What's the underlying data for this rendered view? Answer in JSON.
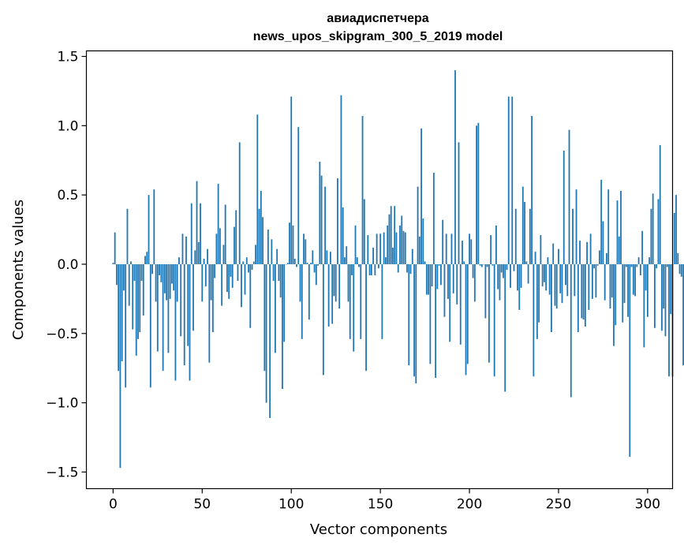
{
  "chart_data": {
    "type": "bar",
    "title": "авиадиспетчера",
    "subtitle": "news_upos_skipgram_300_5_2019 model",
    "xlabel": "Vector components",
    "ylabel": "Components values",
    "xlim": [
      -15,
      314
    ],
    "ylim": [
      -1.62,
      1.54
    ],
    "xticks": [
      0,
      50,
      100,
      150,
      200,
      250,
      300
    ],
    "yticks": [
      -1.5,
      -1.0,
      -0.5,
      0.0,
      0.5,
      1.0,
      1.5
    ],
    "xtick_labels": [
      "0",
      "50",
      "100",
      "150",
      "200",
      "250",
      "300"
    ],
    "ytick_labels": [
      "−1.5",
      "−1.0",
      "−0.5",
      "0.0",
      "0.5",
      "1.0",
      "1.5"
    ],
    "bar_color": "#1f77b4",
    "grid": false,
    "values": [
      0.01,
      0.23,
      -0.15,
      -0.77,
      -1.47,
      -0.7,
      -0.19,
      -0.89,
      0.4,
      -0.3,
      0.02,
      -0.47,
      -0.12,
      -0.66,
      -0.54,
      -0.49,
      -0.12,
      -0.37,
      0.06,
      0.09,
      0.5,
      -0.89,
      -0.07,
      0.54,
      -0.27,
      -0.63,
      -0.08,
      -0.13,
      -0.77,
      -0.21,
      -0.26,
      -0.64,
      -0.25,
      -0.14,
      -0.19,
      -0.84,
      -0.27,
      0.05,
      -0.52,
      0.22,
      -0.73,
      0.2,
      -0.59,
      -0.84,
      0.44,
      -0.48,
      0.1,
      0.6,
      0.16,
      0.44,
      -0.27,
      0.04,
      -0.16,
      0.11,
      -0.71,
      -0.26,
      -0.49,
      -0.1,
      0.22,
      0.58,
      0.26,
      -0.3,
      0.14,
      0.43,
      -0.2,
      -0.25,
      -0.09,
      -0.17,
      0.27,
      0.39,
      -0.12,
      0.88,
      -0.31,
      0.02,
      -0.22,
      0.05,
      -0.06,
      -0.46,
      -0.04,
      0.02,
      0.14,
      1.08,
      0.4,
      0.53,
      0.34,
      -0.77,
      -1.0,
      0.25,
      -1.11,
      0.18,
      -0.12,
      -0.64,
      0.11,
      -0.12,
      -0.24,
      -0.9,
      -0.56,
      0.0,
      0.01,
      0.3,
      1.21,
      0.28,
      0.04,
      -0.02,
      0.99,
      -0.27,
      -0.54,
      0.22,
      0.18,
      0.01,
      -0.4,
      0.01,
      0.1,
      -0.06,
      -0.15,
      -0.01,
      0.74,
      0.64,
      -0.8,
      0.56,
      0.1,
      -0.45,
      0.09,
      -0.43,
      -0.23,
      -0.27,
      0.62,
      -0.32,
      1.22,
      0.41,
      0.05,
      0.13,
      -0.27,
      -0.54,
      -0.08,
      -0.63,
      0.28,
      0.05,
      -0.02,
      -0.54,
      1.07,
      0.47,
      -0.77,
      0.21,
      -0.08,
      -0.08,
      0.12,
      -0.08,
      0.22,
      -0.03,
      0.22,
      -0.54,
      0.23,
      0.05,
      0.28,
      0.36,
      0.42,
      0.12,
      0.42,
      0.23,
      -0.06,
      0.28,
      0.35,
      0.24,
      0.23,
      -0.06,
      -0.73,
      -0.07,
      0.11,
      -0.81,
      -0.86,
      0.56,
      0.2,
      0.98,
      0.33,
      0.02,
      -0.22,
      -0.22,
      -0.72,
      -0.16,
      0.66,
      -0.82,
      -0.18,
      -0.01,
      -0.15,
      0.32,
      -0.38,
      0.22,
      -0.25,
      -0.56,
      0.22,
      -0.21,
      1.4,
      -0.29,
      0.88,
      -0.58,
      0.17,
      0.02,
      -0.8,
      -0.72,
      0.22,
      0.18,
      -0.1,
      -0.27,
      1.0,
      1.02,
      -0.01,
      -0.02,
      0.0,
      -0.39,
      -0.02,
      -0.71,
      0.21,
      -0.01,
      -0.81,
      0.28,
      -0.18,
      -0.26,
      -0.06,
      -0.1,
      -0.92,
      -0.04,
      1.21,
      -0.17,
      1.21,
      -0.05,
      0.4,
      -0.19,
      -0.33,
      -0.17,
      0.56,
      0.45,
      0.02,
      -0.14,
      0.4,
      1.07,
      -0.81,
      0.09,
      -0.54,
      -0.42,
      0.21,
      -0.16,
      -0.13,
      -0.19,
      0.05,
      -0.22,
      -0.49,
      0.15,
      -0.3,
      -0.32,
      0.11,
      -0.21,
      -0.28,
      0.82,
      -0.15,
      -0.23,
      0.97,
      -0.96,
      0.4,
      -0.23,
      0.54,
      -0.49,
      0.17,
      -0.39,
      -0.4,
      -0.45,
      0.16,
      -0.33,
      0.22,
      -0.25,
      -0.03,
      -0.24,
      -0.01,
      0.1,
      0.61,
      0.31,
      -0.26,
      0.08,
      0.54,
      -0.32,
      -0.24,
      -0.59,
      -0.44,
      0.46,
      0.2,
      0.53,
      -0.42,
      -0.28,
      -0.02,
      -0.38,
      -1.39,
      -0.02,
      -0.22,
      -0.23,
      -0.02,
      0.05,
      -0.08,
      0.24,
      -0.6,
      -0.19,
      -0.38,
      0.05,
      0.4,
      0.51,
      -0.46,
      -0.03,
      0.47,
      0.86,
      -0.48,
      -0.32,
      -0.52,
      -0.02,
      -0.81,
      -0.36,
      -0.81,
      0.37,
      0.5,
      0.08,
      -0.07,
      -0.09,
      -0.73,
      0.31,
      0.16,
      -0.07,
      -0.1
    ]
  }
}
